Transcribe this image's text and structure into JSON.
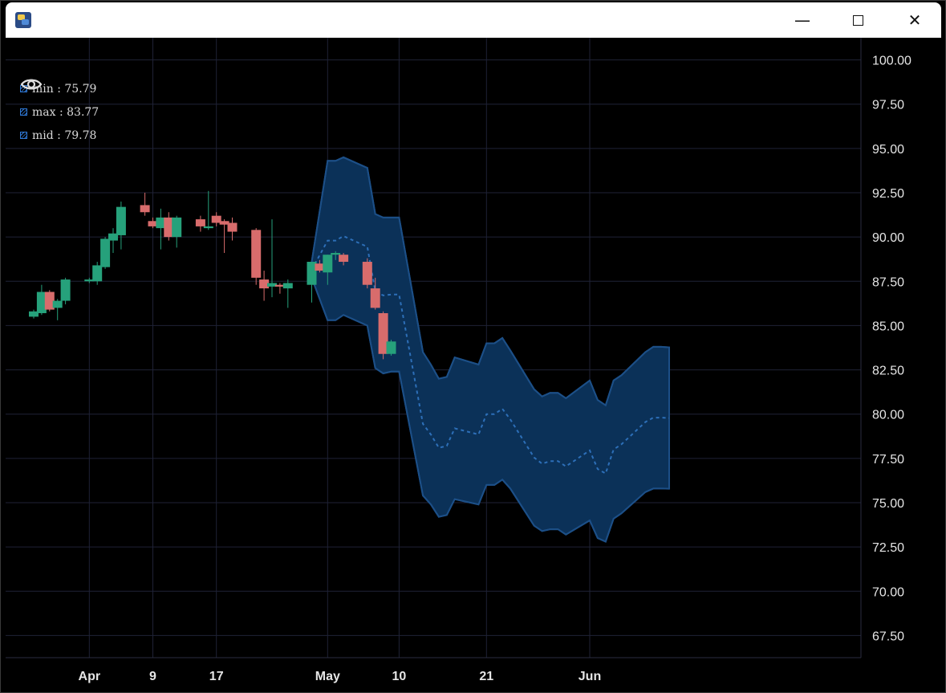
{
  "window": {
    "icon_name": "python-app-icon",
    "controls": [
      {
        "name": "minimize-button",
        "label": "—"
      },
      {
        "name": "maximize-button",
        "label": "☐"
      },
      {
        "name": "close-button",
        "label": "✕"
      }
    ]
  },
  "legend": {
    "items": [
      {
        "label": "min : 75.79",
        "icon": "eye-icon"
      },
      {
        "label": "max : 83.77",
        "icon": "eye-icon"
      },
      {
        "label": "mid : 79.78",
        "icon": "eye-icon"
      }
    ]
  },
  "chart_data": {
    "type": "line",
    "title": "",
    "x_tick_labels": [
      "Apr",
      "9",
      "17",
      "May",
      "10",
      "21",
      "Jun"
    ],
    "y_tick_labels": [
      "100.00",
      "97.50",
      "95.00",
      "92.50",
      "90.00",
      "87.50",
      "85.00",
      "82.50",
      "80.00",
      "77.50",
      "75.00",
      "72.50",
      "70.00",
      "67.50"
    ],
    "ylim": [
      66.25,
      101.25
    ],
    "grid": true,
    "legend_placement": "top-left",
    "colors": {
      "background": "#000000",
      "grid": "#1f2236",
      "candle_up": "#26a17b",
      "candle_down": "#d86c6c",
      "band_fill": "#0b3158",
      "band_line": "#1c4f87",
      "mid_line": "#2d6fb8"
    },
    "candlesticks": [
      {
        "date": "2024-03-25",
        "open": 85.5,
        "high": 85.9,
        "low": 85.4,
        "close": 85.8
      },
      {
        "date": "2024-03-26",
        "open": 85.7,
        "high": 87.3,
        "low": 85.6,
        "close": 86.9
      },
      {
        "date": "2024-03-27",
        "open": 86.9,
        "high": 87.0,
        "low": 85.8,
        "close": 85.9
      },
      {
        "date": "2024-03-28",
        "open": 86.0,
        "high": 86.5,
        "low": 85.3,
        "close": 86.4
      },
      {
        "date": "2024-03-29",
        "open": 86.4,
        "high": 87.7,
        "low": 86.2,
        "close": 87.6
      },
      {
        "date": "2024-04-01",
        "open": 87.5,
        "high": 87.7,
        "low": 87.4,
        "close": 87.6
      },
      {
        "date": "2024-04-02",
        "open": 87.5,
        "high": 88.6,
        "low": 87.3,
        "close": 88.4
      },
      {
        "date": "2024-04-03",
        "open": 88.3,
        "high": 90.0,
        "low": 88.2,
        "close": 89.9
      },
      {
        "date": "2024-04-04",
        "open": 89.8,
        "high": 90.5,
        "low": 89.1,
        "close": 90.2
      },
      {
        "date": "2024-04-05",
        "open": 90.1,
        "high": 92.0,
        "low": 89.3,
        "close": 91.7
      },
      {
        "date": "2024-04-08",
        "open": 91.8,
        "high": 92.5,
        "low": 91.2,
        "close": 91.4
      },
      {
        "date": "2024-04-09",
        "open": 90.9,
        "high": 91.1,
        "low": 90.5,
        "close": 90.6
      },
      {
        "date": "2024-04-10",
        "open": 90.5,
        "high": 91.6,
        "low": 89.3,
        "close": 91.1
      },
      {
        "date": "2024-04-11",
        "open": 91.1,
        "high": 91.4,
        "low": 89.8,
        "close": 90.0
      },
      {
        "date": "2024-04-12",
        "open": 90.0,
        "high": 91.2,
        "low": 89.4,
        "close": 91.1
      },
      {
        "date": "2024-04-15",
        "open": 91.0,
        "high": 91.2,
        "low": 90.3,
        "close": 90.6
      },
      {
        "date": "2024-04-16",
        "open": 90.5,
        "high": 92.6,
        "low": 90.4,
        "close": 90.6
      },
      {
        "date": "2024-04-17",
        "open": 91.2,
        "high": 91.4,
        "low": 90.6,
        "close": 90.8
      },
      {
        "date": "2024-04-18",
        "open": 90.9,
        "high": 91.0,
        "low": 89.1,
        "close": 90.7
      },
      {
        "date": "2024-04-19",
        "open": 90.8,
        "high": 91.1,
        "low": 89.8,
        "close": 90.3
      },
      {
        "date": "2024-04-22",
        "open": 90.4,
        "high": 90.5,
        "low": 87.3,
        "close": 87.7
      },
      {
        "date": "2024-04-23",
        "open": 87.6,
        "high": 88.1,
        "low": 86.4,
        "close": 87.1
      },
      {
        "date": "2024-04-24",
        "open": 87.2,
        "high": 91.0,
        "low": 86.6,
        "close": 87.4
      },
      {
        "date": "2024-04-25",
        "open": 87.3,
        "high": 87.4,
        "low": 86.8,
        "close": 87.2
      },
      {
        "date": "2024-04-26",
        "open": 87.1,
        "high": 87.6,
        "low": 86.0,
        "close": 87.4
      },
      {
        "date": "2024-04-29",
        "open": 87.3,
        "high": 88.6,
        "low": 86.3,
        "close": 88.6
      },
      {
        "date": "2024-04-30",
        "open": 88.5,
        "high": 88.7,
        "low": 88.0,
        "close": 88.1
      },
      {
        "date": "2024-05-01",
        "open": 88.0,
        "high": 89.0,
        "low": 87.3,
        "close": 89.0
      },
      {
        "date": "2024-05-02",
        "open": 89.0,
        "high": 89.2,
        "low": 88.7,
        "close": 89.1
      },
      {
        "date": "2024-05-03",
        "open": 89.0,
        "high": 89.1,
        "low": 88.4,
        "close": 88.6
      },
      {
        "date": "2024-05-06",
        "open": 88.6,
        "high": 88.8,
        "low": 87.1,
        "close": 87.3
      },
      {
        "date": "2024-05-07",
        "open": 87.1,
        "high": 87.7,
        "low": 85.9,
        "close": 86.0
      },
      {
        "date": "2024-05-08",
        "open": 85.7,
        "high": 85.8,
        "low": 83.1,
        "close": 83.4
      },
      {
        "date": "2024-05-09",
        "open": 83.4,
        "high": 84.2,
        "low": 83.3,
        "close": 84.1
      }
    ],
    "series": [
      {
        "name": "min",
        "x": [
          "2024-04-29",
          "2024-05-01",
          "2024-05-02",
          "2024-05-03",
          "2024-05-06",
          "2024-05-07",
          "2024-05-08",
          "2024-05-09",
          "2024-05-10",
          "2024-05-13",
          "2024-05-14",
          "2024-05-15",
          "2024-05-16",
          "2024-05-17",
          "2024-05-20",
          "2024-05-21",
          "2024-05-22",
          "2024-05-23",
          "2024-05-24",
          "2024-05-27",
          "2024-05-28",
          "2024-05-29",
          "2024-05-30",
          "2024-05-31",
          "2024-06-03",
          "2024-06-04",
          "2024-06-05",
          "2024-06-06",
          "2024-06-07",
          "2024-06-10",
          "2024-06-11",
          "2024-06-12",
          "2024-06-13"
        ],
        "values": [
          87.7,
          85.3,
          85.3,
          85.6,
          85.0,
          82.6,
          82.3,
          82.4,
          82.4,
          75.4,
          74.9,
          74.2,
          74.3,
          75.2,
          74.9,
          76.0,
          76.0,
          76.3,
          75.8,
          73.7,
          73.4,
          73.5,
          73.5,
          73.2,
          74.0,
          73.0,
          72.8,
          74.1,
          74.4,
          75.6,
          75.8,
          75.8,
          75.79
        ]
      },
      {
        "name": "max",
        "x": [
          "2024-04-29",
          "2024-05-01",
          "2024-05-02",
          "2024-05-03",
          "2024-05-06",
          "2024-05-07",
          "2024-05-08",
          "2024-05-09",
          "2024-05-10",
          "2024-05-13",
          "2024-05-14",
          "2024-05-15",
          "2024-05-16",
          "2024-05-17",
          "2024-05-20",
          "2024-05-21",
          "2024-05-22",
          "2024-05-23",
          "2024-05-24",
          "2024-05-27",
          "2024-05-28",
          "2024-05-29",
          "2024-05-30",
          "2024-05-31",
          "2024-06-03",
          "2024-06-04",
          "2024-06-05",
          "2024-06-06",
          "2024-06-07",
          "2024-06-10",
          "2024-06-11",
          "2024-06-12",
          "2024-06-13"
        ],
        "values": [
          88.6,
          94.3,
          94.3,
          94.5,
          93.9,
          91.3,
          91.1,
          91.1,
          91.1,
          83.5,
          82.8,
          82.0,
          82.1,
          83.2,
          82.8,
          84.0,
          84.0,
          84.3,
          83.6,
          81.4,
          81.0,
          81.2,
          81.2,
          80.9,
          81.9,
          80.8,
          80.5,
          81.9,
          82.2,
          83.5,
          83.8,
          83.8,
          83.77
        ]
      },
      {
        "name": "mid",
        "x": [
          "2024-04-29",
          "2024-05-01",
          "2024-05-02",
          "2024-05-03",
          "2024-05-06",
          "2024-05-07",
          "2024-05-08",
          "2024-05-09",
          "2024-05-10",
          "2024-05-13",
          "2024-05-14",
          "2024-05-15",
          "2024-05-16",
          "2024-05-17",
          "2024-05-20",
          "2024-05-21",
          "2024-05-22",
          "2024-05-23",
          "2024-05-24",
          "2024-05-27",
          "2024-05-28",
          "2024-05-29",
          "2024-05-30",
          "2024-05-31",
          "2024-06-03",
          "2024-06-04",
          "2024-06-05",
          "2024-06-06",
          "2024-06-07",
          "2024-06-10",
          "2024-06-11",
          "2024-06-12",
          "2024-06-13"
        ],
        "values": [
          88.15,
          89.8,
          89.8,
          90.05,
          89.45,
          86.95,
          86.7,
          86.75,
          86.75,
          79.45,
          78.85,
          78.1,
          78.2,
          79.2,
          78.85,
          80.0,
          80.0,
          80.3,
          79.7,
          77.55,
          77.2,
          77.35,
          77.35,
          77.05,
          77.95,
          76.9,
          76.65,
          78.0,
          78.3,
          79.55,
          79.8,
          79.8,
          79.78
        ]
      }
    ]
  }
}
